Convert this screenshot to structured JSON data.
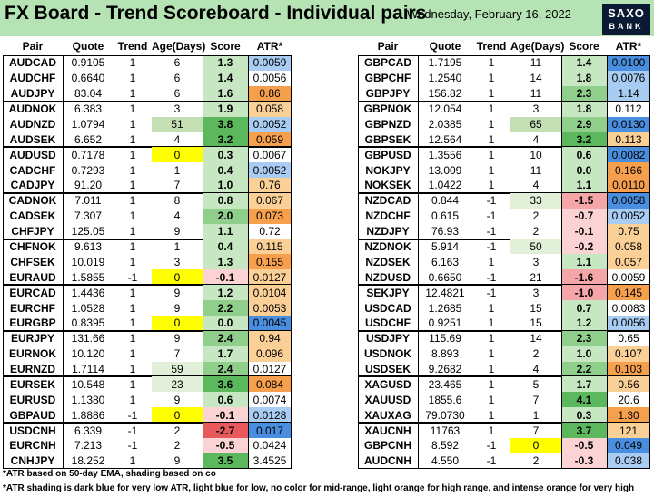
{
  "header": {
    "title": "FX Board - Trend Scoreboard - Individual pairs",
    "date": "Wednesday, February 16, 2022",
    "logo_line1": "SAXO",
    "logo_line2": "BANK"
  },
  "columns": [
    "Pair",
    "Quote",
    "Trend",
    "Age(Days)",
    "Score",
    "ATR*"
  ],
  "colors": {
    "header_bg": "#b6e3b4",
    "age_yellow": "#ffff00",
    "age_green_light": "#e2efd9",
    "age_green_mid": "#c5dfb4",
    "score_green_strong": "#5cb85c",
    "score_green_mid": "#8fce8b",
    "score_green_light": "#c6e7c2",
    "score_red_strong": "#e8595c",
    "score_red_mid": "#f4a6a8",
    "score_red_light": "#fbd3d4",
    "atr_dark_blue": "#4a8ee0",
    "atr_light_blue": "#a9cdf2",
    "atr_light_orange": "#fbd096",
    "atr_intense_orange": "#f6a04d"
  },
  "chart_data": {
    "type": "table",
    "left": [
      {
        "pair": "AUDCAD",
        "quote": "0.9105",
        "trend": "1",
        "age": "6",
        "score": "1.3",
        "atr": "0.0059",
        "age_c": "",
        "score_c": "gl",
        "atr_c": "lb"
      },
      {
        "pair": "AUDCHF",
        "quote": "0.6640",
        "trend": "1",
        "age": "6",
        "score": "1.4",
        "atr": "0.0056",
        "age_c": "",
        "score_c": "gl",
        "atr_c": ""
      },
      {
        "pair": "AUDJPY",
        "quote": "83.04",
        "trend": "1",
        "age": "6",
        "score": "1.6",
        "atr": "0.86",
        "age_c": "",
        "score_c": "gl",
        "atr_c": "io"
      },
      {
        "pair": "AUDNOK",
        "quote": "6.383",
        "trend": "1",
        "age": "3",
        "score": "1.9",
        "atr": "0.058",
        "age_c": "",
        "score_c": "gl",
        "atr_c": "lo"
      },
      {
        "pair": "AUDNZD",
        "quote": "1.0794",
        "trend": "1",
        "age": "51",
        "score": "3.8",
        "atr": "0.0052",
        "age_c": "gm",
        "score_c": "gs",
        "atr_c": "lb"
      },
      {
        "pair": "AUDSEK",
        "quote": "6.652",
        "trend": "1",
        "age": "4",
        "score": "3.2",
        "atr": "0.059",
        "age_c": "",
        "score_c": "gs",
        "atr_c": "io"
      },
      {
        "pair": "AUDUSD",
        "quote": "0.7178",
        "trend": "1",
        "age": "0",
        "score": "0.3",
        "atr": "0.0067",
        "age_c": "y",
        "score_c": "gl",
        "atr_c": ""
      },
      {
        "pair": "CADCHF",
        "quote": "0.7293",
        "trend": "1",
        "age": "1",
        "score": "0.4",
        "atr": "0.0052",
        "age_c": "",
        "score_c": "gl",
        "atr_c": "lb"
      },
      {
        "pair": "CADJPY",
        "quote": "91.20",
        "trend": "1",
        "age": "7",
        "score": "1.0",
        "atr": "0.76",
        "age_c": "",
        "score_c": "gl",
        "atr_c": "lo"
      },
      {
        "pair": "CADNOK",
        "quote": "7.011",
        "trend": "1",
        "age": "8",
        "score": "0.8",
        "atr": "0.067",
        "age_c": "",
        "score_c": "gl",
        "atr_c": "lo"
      },
      {
        "pair": "CADSEK",
        "quote": "7.307",
        "trend": "1",
        "age": "4",
        "score": "2.0",
        "atr": "0.073",
        "age_c": "",
        "score_c": "gm",
        "atr_c": "io"
      },
      {
        "pair": "CHFJPY",
        "quote": "125.05",
        "trend": "1",
        "age": "9",
        "score": "1.1",
        "atr": "0.72",
        "age_c": "",
        "score_c": "gl",
        "atr_c": ""
      },
      {
        "pair": "CHFNOK",
        "quote": "9.613",
        "trend": "1",
        "age": "1",
        "score": "0.4",
        "atr": "0.115",
        "age_c": "",
        "score_c": "gl",
        "atr_c": "lo"
      },
      {
        "pair": "CHFSEK",
        "quote": "10.019",
        "trend": "1",
        "age": "3",
        "score": "1.3",
        "atr": "0.155",
        "age_c": "",
        "score_c": "gl",
        "atr_c": "io"
      },
      {
        "pair": "EURAUD",
        "quote": "1.5855",
        "trend": "-1",
        "age": "0",
        "score": "-0.1",
        "atr": "0.0127",
        "age_c": "y",
        "score_c": "rl",
        "atr_c": "lo"
      },
      {
        "pair": "EURCAD",
        "quote": "1.4436",
        "trend": "1",
        "age": "9",
        "score": "1.2",
        "atr": "0.0104",
        "age_c": "",
        "score_c": "gl",
        "atr_c": "lo"
      },
      {
        "pair": "EURCHF",
        "quote": "1.0528",
        "trend": "1",
        "age": "9",
        "score": "2.2",
        "atr": "0.0053",
        "age_c": "",
        "score_c": "gm",
        "atr_c": "lo"
      },
      {
        "pair": "EURGBP",
        "quote": "0.8395",
        "trend": "1",
        "age": "0",
        "score": "0.0",
        "atr": "0.0045",
        "age_c": "y",
        "score_c": "gl",
        "atr_c": "db"
      },
      {
        "pair": "EURJPY",
        "quote": "131.66",
        "trend": "1",
        "age": "9",
        "score": "2.4",
        "atr": "0.94",
        "age_c": "",
        "score_c": "gm",
        "atr_c": "lo"
      },
      {
        "pair": "EURNOK",
        "quote": "10.120",
        "trend": "1",
        "age": "7",
        "score": "1.7",
        "atr": "0.096",
        "age_c": "",
        "score_c": "gl",
        "atr_c": "lo"
      },
      {
        "pair": "EURNZD",
        "quote": "1.7114",
        "trend": "1",
        "age": "59",
        "score": "2.4",
        "atr": "0.0127",
        "age_c": "gl",
        "score_c": "gm",
        "atr_c": ""
      },
      {
        "pair": "EURSEK",
        "quote": "10.548",
        "trend": "1",
        "age": "23",
        "score": "3.6",
        "atr": "0.084",
        "age_c": "gl",
        "score_c": "gs",
        "atr_c": "io"
      },
      {
        "pair": "EURUSD",
        "quote": "1.1380",
        "trend": "1",
        "age": "9",
        "score": "0.6",
        "atr": "0.0074",
        "age_c": "",
        "score_c": "gl",
        "atr_c": ""
      },
      {
        "pair": "GBPAUD",
        "quote": "1.8886",
        "trend": "-1",
        "age": "0",
        "score": "-0.1",
        "atr": "0.0128",
        "age_c": "y",
        "score_c": "rl",
        "atr_c": "lb"
      },
      {
        "pair": "USDCNH",
        "quote": "6.339",
        "trend": "-1",
        "age": "2",
        "score": "-2.7",
        "atr": "0.017",
        "age_c": "",
        "score_c": "rs",
        "atr_c": "db"
      },
      {
        "pair": "EURCNH",
        "quote": "7.213",
        "trend": "-1",
        "age": "2",
        "score": "-0.5",
        "atr": "0.0424",
        "age_c": "",
        "score_c": "rl",
        "atr_c": ""
      },
      {
        "pair": "CNHJPY",
        "quote": "18.252",
        "trend": "1",
        "age": "9",
        "score": "3.5",
        "atr": "3.4525",
        "age_c": "",
        "score_c": "gs",
        "atr_c": ""
      }
    ],
    "right": [
      {
        "pair": "GBPCAD",
        "quote": "1.7195",
        "trend": "1",
        "age": "11",
        "score": "1.4",
        "atr": "0.0100",
        "age_c": "",
        "score_c": "gl",
        "atr_c": "db"
      },
      {
        "pair": "GBPCHF",
        "quote": "1.2540",
        "trend": "1",
        "age": "14",
        "score": "1.8",
        "atr": "0.0076",
        "age_c": "",
        "score_c": "gl",
        "atr_c": "lb"
      },
      {
        "pair": "GBPJPY",
        "quote": "156.82",
        "trend": "1",
        "age": "11",
        "score": "2.3",
        "atr": "1.14",
        "age_c": "",
        "score_c": "gm",
        "atr_c": "lb"
      },
      {
        "pair": "GBPNOK",
        "quote": "12.054",
        "trend": "1",
        "age": "3",
        "score": "1.8",
        "atr": "0.112",
        "age_c": "",
        "score_c": "gl",
        "atr_c": ""
      },
      {
        "pair": "GBPNZD",
        "quote": "2.0385",
        "trend": "1",
        "age": "65",
        "score": "2.9",
        "atr": "0.0130",
        "age_c": "gm",
        "score_c": "gm",
        "atr_c": "db"
      },
      {
        "pair": "GBPSEK",
        "quote": "12.564",
        "trend": "1",
        "age": "4",
        "score": "3.2",
        "atr": "0.113",
        "age_c": "",
        "score_c": "gs",
        "atr_c": "lo"
      },
      {
        "pair": "GBPUSD",
        "quote": "1.3556",
        "trend": "1",
        "age": "10",
        "score": "0.6",
        "atr": "0.0082",
        "age_c": "",
        "score_c": "gl",
        "atr_c": "db"
      },
      {
        "pair": "NOKJPY",
        "quote": "13.009",
        "trend": "1",
        "age": "11",
        "score": "0.0",
        "atr": "0.166",
        "age_c": "",
        "score_c": "gl",
        "atr_c": "io"
      },
      {
        "pair": "NOKSEK",
        "quote": "1.0422",
        "trend": "1",
        "age": "4",
        "score": "1.1",
        "atr": "0.0110",
        "age_c": "",
        "score_c": "gl",
        "atr_c": "io"
      },
      {
        "pair": "NZDCAD",
        "quote": "0.844",
        "trend": "-1",
        "age": "33",
        "score": "-1.5",
        "atr": "0.0058",
        "age_c": "gl",
        "score_c": "rm",
        "atr_c": "db"
      },
      {
        "pair": "NZDCHF",
        "quote": "0.615",
        "trend": "-1",
        "age": "2",
        "score": "-0.7",
        "atr": "0.0052",
        "age_c": "",
        "score_c": "rl",
        "atr_c": "lb"
      },
      {
        "pair": "NZDJPY",
        "quote": "76.93",
        "trend": "-1",
        "age": "2",
        "score": "-0.1",
        "atr": "0.75",
        "age_c": "",
        "score_c": "rl",
        "atr_c": "lo"
      },
      {
        "pair": "NZDNOK",
        "quote": "5.914",
        "trend": "-1",
        "age": "50",
        "score": "-0.2",
        "atr": "0.058",
        "age_c": "gl",
        "score_c": "rl",
        "atr_c": "lo"
      },
      {
        "pair": "NZDSEK",
        "quote": "6.163",
        "trend": "1",
        "age": "3",
        "score": "1.1",
        "atr": "0.057",
        "age_c": "",
        "score_c": "gl",
        "atr_c": "lo"
      },
      {
        "pair": "NZDUSD",
        "quote": "0.6650",
        "trend": "-1",
        "age": "21",
        "score": "-1.6",
        "atr": "0.0059",
        "age_c": "",
        "score_c": "rm",
        "atr_c": ""
      },
      {
        "pair": "SEKJPY",
        "quote": "12.4821",
        "trend": "-1",
        "age": "3",
        "score": "-1.0",
        "atr": "0.145",
        "age_c": "",
        "score_c": "rm",
        "atr_c": "io"
      },
      {
        "pair": "USDCAD",
        "quote": "1.2685",
        "trend": "1",
        "age": "15",
        "score": "0.7",
        "atr": "0.0083",
        "age_c": "",
        "score_c": "gl",
        "atr_c": ""
      },
      {
        "pair": "USDCHF",
        "quote": "0.9251",
        "trend": "1",
        "age": "15",
        "score": "1.2",
        "atr": "0.0056",
        "age_c": "",
        "score_c": "gl",
        "atr_c": "lb"
      },
      {
        "pair": "USDJPY",
        "quote": "115.69",
        "trend": "1",
        "age": "14",
        "score": "2.3",
        "atr": "0.65",
        "age_c": "",
        "score_c": "gm",
        "atr_c": ""
      },
      {
        "pair": "USDNOK",
        "quote": "8.893",
        "trend": "1",
        "age": "2",
        "score": "1.0",
        "atr": "0.107",
        "age_c": "",
        "score_c": "gl",
        "atr_c": "lo"
      },
      {
        "pair": "USDSEK",
        "quote": "9.2682",
        "trend": "1",
        "age": "4",
        "score": "2.2",
        "atr": "0.103",
        "age_c": "",
        "score_c": "gm",
        "atr_c": "io"
      },
      {
        "pair": "XAGUSD",
        "quote": "23.465",
        "trend": "1",
        "age": "5",
        "score": "1.7",
        "atr": "0.56",
        "age_c": "",
        "score_c": "gl",
        "atr_c": "lo"
      },
      {
        "pair": "XAUUSD",
        "quote": "1855.6",
        "trend": "1",
        "age": "7",
        "score": "4.1",
        "atr": "20.6",
        "age_c": "",
        "score_c": "gs",
        "atr_c": ""
      },
      {
        "pair": "XAUXAG",
        "quote": "79.0730",
        "trend": "1",
        "age": "1",
        "score": "0.3",
        "atr": "1.30",
        "age_c": "",
        "score_c": "gl",
        "atr_c": "io"
      },
      {
        "pair": "XAUCNH",
        "quote": "11763",
        "trend": "1",
        "age": "7",
        "score": "3.7",
        "atr": "121",
        "age_c": "",
        "score_c": "gs",
        "atr_c": "lo"
      },
      {
        "pair": "GBPCNH",
        "quote": "8.592",
        "trend": "-1",
        "age": "0",
        "score": "-0.5",
        "atr": "0.049",
        "age_c": "y",
        "score_c": "rl",
        "atr_c": "db"
      },
      {
        "pair": "AUDCNH",
        "quote": "4.550",
        "trend": "-1",
        "age": "2",
        "score": "-0.3",
        "atr": "0.038",
        "age_c": "",
        "score_c": "rl",
        "atr_c": "lb"
      }
    ]
  },
  "footnotes": {
    "note1": "*ATR based on 50-day EMA, shading based on co",
    "note2": "*ATR shading is dark blue for very low ATR, light blue for low, no color for mid-range, light orange for high range, and intense orange for very high"
  }
}
